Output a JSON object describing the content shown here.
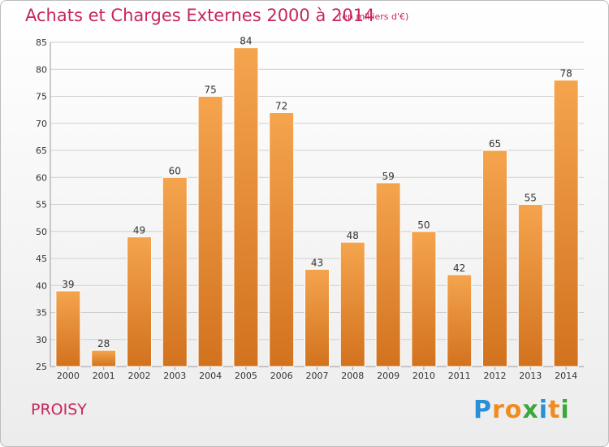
{
  "title": "Achats et Charges Externes 2000 à 2014",
  "subtitle": "(en milliers d'€)",
  "commune": "PROISY",
  "logo": {
    "letters": [
      {
        "char": "P",
        "color": "#2a8fd6"
      },
      {
        "char": "r",
        "color": "#f08c1e"
      },
      {
        "char": "o",
        "color": "#f08c1e"
      },
      {
        "char": "x",
        "color": "#3aa83a"
      },
      {
        "char": "i",
        "color": "#2a8fd6"
      },
      {
        "char": "t",
        "color": "#f08c1e"
      },
      {
        "char": "i",
        "color": "#3aa83a"
      }
    ]
  },
  "colors": {
    "title": "#c8265a",
    "bar_light": "#f5a44e",
    "bar_dark": "#d2721e",
    "grid": "#cfcfcf",
    "axis_text": "#333333"
  },
  "chart_data": {
    "type": "bar",
    "title": "Achats et Charges Externes 2000 à 2014",
    "subtitle": "(en milliers d'€)",
    "categories": [
      "2000",
      "2001",
      "2002",
      "2003",
      "2004",
      "2005",
      "2006",
      "2007",
      "2008",
      "2009",
      "2010",
      "2011",
      "2012",
      "2013",
      "2014"
    ],
    "values": [
      39,
      28,
      49,
      60,
      75,
      84,
      72,
      43,
      48,
      59,
      50,
      42,
      65,
      55,
      78
    ],
    "ylim": [
      25,
      85
    ],
    "yticks": [
      25,
      30,
      35,
      40,
      45,
      50,
      55,
      60,
      65,
      70,
      75,
      80,
      85
    ],
    "grid": true,
    "data_labels": true
  }
}
